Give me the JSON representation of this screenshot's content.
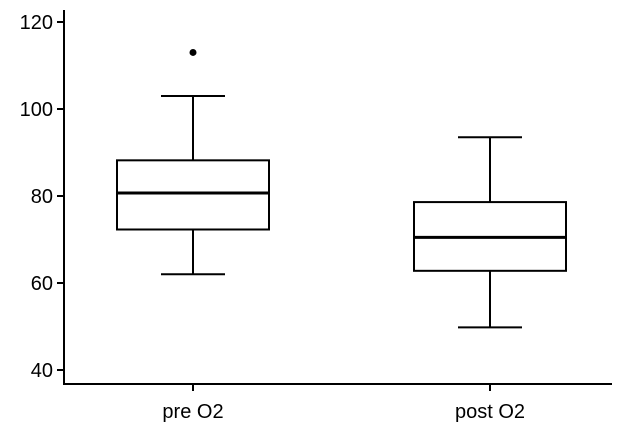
{
  "chart_data": {
    "type": "box",
    "title": "",
    "xlabel": "",
    "ylabel": "",
    "ylim": [
      40,
      120
    ],
    "yticks": [
      40,
      60,
      80,
      100,
      120
    ],
    "categories": [
      "pre O2",
      "post O2"
    ],
    "boxes": [
      {
        "category": "pre O2",
        "whisker_low": 62,
        "q1": 72.3,
        "median": 80.7,
        "q3": 88.2,
        "whisker_high": 103,
        "outliers": [
          113
        ]
      },
      {
        "category": "post O2",
        "whisker_low": 49.8,
        "q1": 62.8,
        "median": 70.5,
        "q3": 78.6,
        "whisker_high": 93.5,
        "outliers": []
      }
    ],
    "grid": false,
    "legend": "none"
  }
}
